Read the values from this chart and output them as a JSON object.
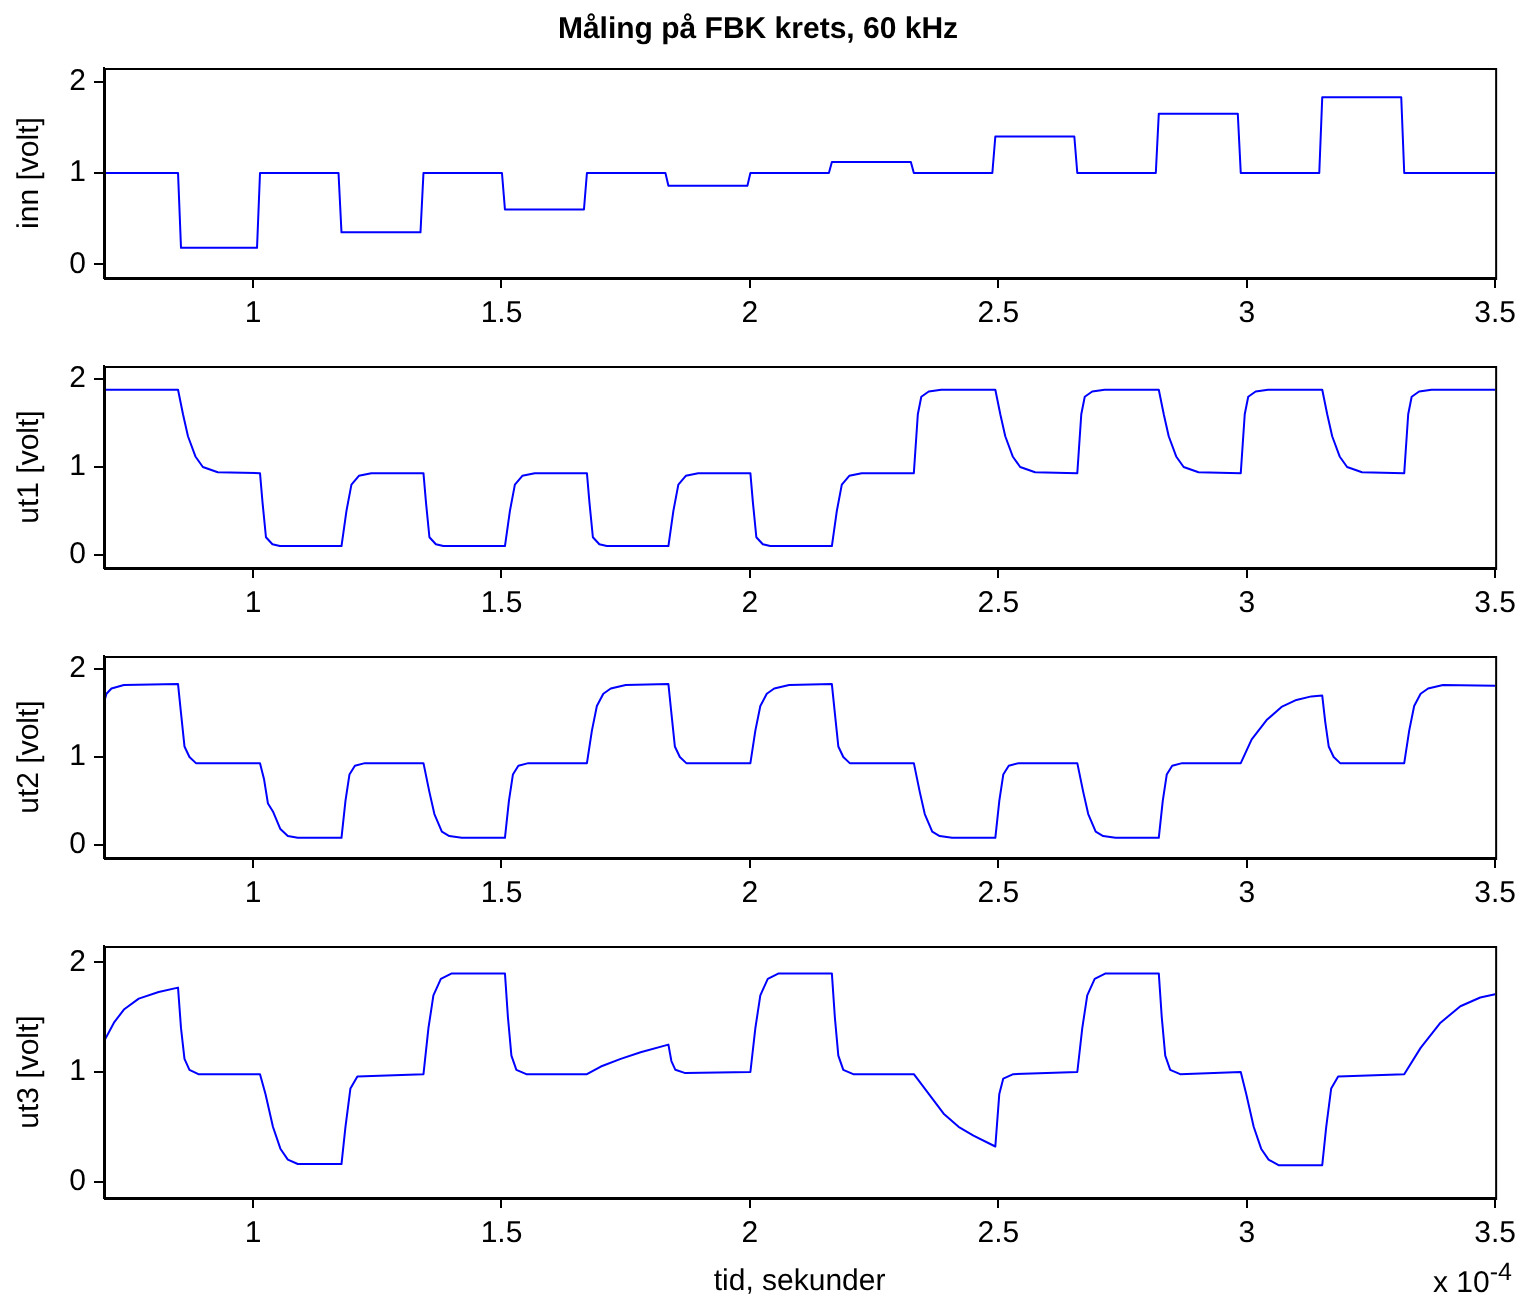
{
  "chart_data": [
    {
      "type": "line",
      "title": "Måling på FBK krets, 60 kHz",
      "ylabel": "inn [volt]",
      "marker": "none",
      "xlim": [
        0.7,
        3.5
      ],
      "xticks": [
        1,
        1.5,
        2,
        2.5,
        3,
        3.5
      ],
      "ylim": [
        -0.15,
        2.15
      ],
      "yticks": [
        0,
        1,
        2
      ],
      "x": [
        0.7,
        0.849,
        0.855,
        1.008,
        1.014,
        1.172,
        1.178,
        1.337,
        1.343,
        1.501,
        1.507,
        1.666,
        1.672,
        1.83,
        1.836,
        1.995,
        2.001,
        2.159,
        2.165,
        2.324,
        2.33,
        2.488,
        2.494,
        2.653,
        2.659,
        2.817,
        2.823,
        2.982,
        2.988,
        3.146,
        3.152,
        3.311,
        3.317,
        3.5
      ],
      "series": [
        {
          "color": "#0000ff",
          "values": [
            1.0,
            1.0,
            0.18,
            0.18,
            1.0,
            1.0,
            0.35,
            0.35,
            1.0,
            1.0,
            0.6,
            0.6,
            1.0,
            1.0,
            0.86,
            0.86,
            1.0,
            1.0,
            1.12,
            1.12,
            1.0,
            1.0,
            1.4,
            1.4,
            1.0,
            1.0,
            1.65,
            1.65,
            1.0,
            1.0,
            1.83,
            1.83,
            1.0,
            1.0
          ]
        }
      ]
    },
    {
      "type": "line",
      "ylabel": "ut1 [volt]",
      "marker": "none",
      "xlim": [
        0.7,
        3.5
      ],
      "xticks": [
        1,
        1.5,
        2,
        2.5,
        3,
        3.5
      ],
      "ylim": [
        -0.15,
        2.15
      ],
      "yticks": [
        0,
        1,
        2
      ],
      "x": [
        0.7,
        0.849,
        0.859,
        0.869,
        0.884,
        0.899,
        0.929,
        1.014,
        1.019,
        1.026,
        1.039,
        1.054,
        1.178,
        1.188,
        1.198,
        1.213,
        1.238,
        1.343,
        1.348,
        1.355,
        1.368,
        1.383,
        1.507,
        1.517,
        1.527,
        1.542,
        1.567,
        1.672,
        1.677,
        1.684,
        1.697,
        1.712,
        1.836,
        1.846,
        1.856,
        1.871,
        1.896,
        2.001,
        2.006,
        2.013,
        2.026,
        2.041,
        2.165,
        2.175,
        2.185,
        2.2,
        2.225,
        2.33,
        2.338,
        2.345,
        2.36,
        2.385,
        2.494,
        2.504,
        2.514,
        2.529,
        2.544,
        2.574,
        2.659,
        2.667,
        2.674,
        2.689,
        2.714,
        2.823,
        2.833,
        2.843,
        2.858,
        2.873,
        2.903,
        2.988,
        2.996,
        3.003,
        3.018,
        3.043,
        3.152,
        3.162,
        3.172,
        3.187,
        3.202,
        3.232,
        3.317,
        3.325,
        3.332,
        3.347,
        3.372,
        3.5
      ],
      "series": [
        {
          "color": "#0000ff",
          "values": [
            1.88,
            1.88,
            1.6,
            1.35,
            1.12,
            1.0,
            0.94,
            0.93,
            0.6,
            0.2,
            0.12,
            0.1,
            0.1,
            0.5,
            0.8,
            0.9,
            0.93,
            0.93,
            0.6,
            0.2,
            0.12,
            0.1,
            0.1,
            0.5,
            0.8,
            0.9,
            0.93,
            0.93,
            0.6,
            0.2,
            0.12,
            0.1,
            0.1,
            0.5,
            0.8,
            0.9,
            0.93,
            0.93,
            0.6,
            0.2,
            0.12,
            0.1,
            0.1,
            0.5,
            0.8,
            0.9,
            0.93,
            0.93,
            1.6,
            1.8,
            1.86,
            1.88,
            1.88,
            1.6,
            1.35,
            1.12,
            1.0,
            0.94,
            0.93,
            1.6,
            1.8,
            1.86,
            1.88,
            1.88,
            1.6,
            1.35,
            1.12,
            1.0,
            0.94,
            0.93,
            1.6,
            1.8,
            1.86,
            1.88,
            1.88,
            1.6,
            1.35,
            1.12,
            1.0,
            0.94,
            0.93,
            1.6,
            1.8,
            1.86,
            1.88,
            1.88
          ]
        }
      ]
    },
    {
      "type": "line",
      "ylabel": "ut2 [volt]",
      "marker": "none",
      "xlim": [
        0.7,
        3.5
      ],
      "xticks": [
        1,
        1.5,
        2,
        2.5,
        3,
        3.5
      ],
      "ylim": [
        -0.15,
        2.15
      ],
      "yticks": [
        0,
        1,
        2
      ],
      "x": [
        0.7,
        0.705,
        0.715,
        0.74,
        0.849,
        0.855,
        0.862,
        0.872,
        0.885,
        1.014,
        1.022,
        1.03,
        1.04,
        1.055,
        1.07,
        1.09,
        1.178,
        1.186,
        1.194,
        1.205,
        1.225,
        1.343,
        1.355,
        1.365,
        1.38,
        1.395,
        1.42,
        1.507,
        1.515,
        1.523,
        1.534,
        1.554,
        1.672,
        1.682,
        1.692,
        1.705,
        1.72,
        1.75,
        1.836,
        1.842,
        1.849,
        1.859,
        1.872,
        2.001,
        2.011,
        2.021,
        2.034,
        2.049,
        2.079,
        2.165,
        2.171,
        2.178,
        2.188,
        2.201,
        2.33,
        2.342,
        2.352,
        2.367,
        2.382,
        2.407,
        2.494,
        2.502,
        2.51,
        2.521,
        2.541,
        2.659,
        2.671,
        2.681,
        2.696,
        2.711,
        2.736,
        2.823,
        2.831,
        2.839,
        2.85,
        2.87,
        2.988,
        3.01,
        3.04,
        3.07,
        3.1,
        3.13,
        3.152,
        3.158,
        3.165,
        3.175,
        3.188,
        3.317,
        3.327,
        3.337,
        3.35,
        3.365,
        3.395,
        3.5
      ],
      "series": [
        {
          "color": "#0000ff",
          "values": [
            1.62,
            1.72,
            1.78,
            1.82,
            1.83,
            1.5,
            1.12,
            1.0,
            0.93,
            0.93,
            0.75,
            0.47,
            0.38,
            0.18,
            0.1,
            0.08,
            0.08,
            0.5,
            0.8,
            0.9,
            0.93,
            0.93,
            0.6,
            0.35,
            0.15,
            0.1,
            0.08,
            0.08,
            0.5,
            0.8,
            0.9,
            0.93,
            0.93,
            1.3,
            1.58,
            1.72,
            1.78,
            1.82,
            1.83,
            1.5,
            1.12,
            1.0,
            0.93,
            0.93,
            1.3,
            1.58,
            1.72,
            1.78,
            1.82,
            1.83,
            1.5,
            1.12,
            1.0,
            0.93,
            0.93,
            0.6,
            0.35,
            0.15,
            0.1,
            0.08,
            0.08,
            0.5,
            0.8,
            0.9,
            0.93,
            0.93,
            0.6,
            0.35,
            0.15,
            0.1,
            0.08,
            0.08,
            0.5,
            0.8,
            0.9,
            0.93,
            0.93,
            1.2,
            1.42,
            1.57,
            1.65,
            1.69,
            1.7,
            1.4,
            1.12,
            1.0,
            0.93,
            0.93,
            1.3,
            1.58,
            1.72,
            1.78,
            1.82,
            1.81
          ]
        }
      ]
    },
    {
      "type": "line",
      "ylabel": "ut3 [volt]",
      "xlabel": "tid, sekunder",
      "annotations": [
        "x 10$^{-4}$"
      ],
      "marker": "none",
      "xlim": [
        0.7,
        3.5
      ],
      "xticks": [
        1,
        1.5,
        2,
        2.5,
        3,
        3.5
      ],
      "ylim": [
        -0.15,
        2.15
      ],
      "yticks": [
        0,
        1,
        2
      ],
      "x": [
        0.7,
        0.72,
        0.74,
        0.77,
        0.81,
        0.849,
        0.855,
        0.862,
        0.872,
        0.89,
        1.014,
        1.025,
        1.04,
        1.055,
        1.07,
        1.09,
        1.178,
        1.186,
        1.196,
        1.21,
        1.343,
        1.353,
        1.363,
        1.378,
        1.4,
        1.507,
        1.513,
        1.52,
        1.53,
        1.55,
        1.672,
        1.7,
        1.74,
        1.78,
        1.836,
        1.842,
        1.85,
        1.87,
        2.001,
        2.011,
        2.021,
        2.036,
        2.058,
        2.165,
        2.171,
        2.178,
        2.188,
        2.208,
        2.33,
        2.36,
        2.39,
        2.42,
        2.45,
        2.494,
        2.502,
        2.51,
        2.53,
        2.659,
        2.669,
        2.679,
        2.694,
        2.716,
        2.823,
        2.829,
        2.836,
        2.846,
        2.866,
        2.988,
        2.999,
        3.014,
        3.029,
        3.044,
        3.064,
        3.152,
        3.16,
        3.17,
        3.184,
        3.317,
        3.35,
        3.39,
        3.43,
        3.47,
        3.5
      ],
      "series": [
        {
          "color": "#0000ff",
          "values": [
            1.28,
            1.45,
            1.57,
            1.67,
            1.73,
            1.77,
            1.4,
            1.12,
            1.02,
            0.98,
            0.98,
            0.8,
            0.5,
            0.3,
            0.2,
            0.16,
            0.16,
            0.5,
            0.85,
            0.96,
            0.98,
            1.4,
            1.7,
            1.85,
            1.9,
            1.9,
            1.5,
            1.15,
            1.02,
            0.98,
            0.98,
            1.05,
            1.12,
            1.18,
            1.25,
            1.1,
            1.02,
            0.99,
            1.0,
            1.4,
            1.7,
            1.85,
            1.9,
            1.9,
            1.5,
            1.15,
            1.02,
            0.98,
            0.98,
            0.8,
            0.62,
            0.5,
            0.42,
            0.32,
            0.8,
            0.94,
            0.98,
            1.0,
            1.4,
            1.7,
            1.85,
            1.9,
            1.9,
            1.5,
            1.15,
            1.02,
            0.98,
            1.0,
            0.8,
            0.5,
            0.3,
            0.2,
            0.15,
            0.15,
            0.5,
            0.85,
            0.96,
            0.98,
            1.22,
            1.45,
            1.6,
            1.68,
            1.71
          ]
        }
      ]
    }
  ]
}
